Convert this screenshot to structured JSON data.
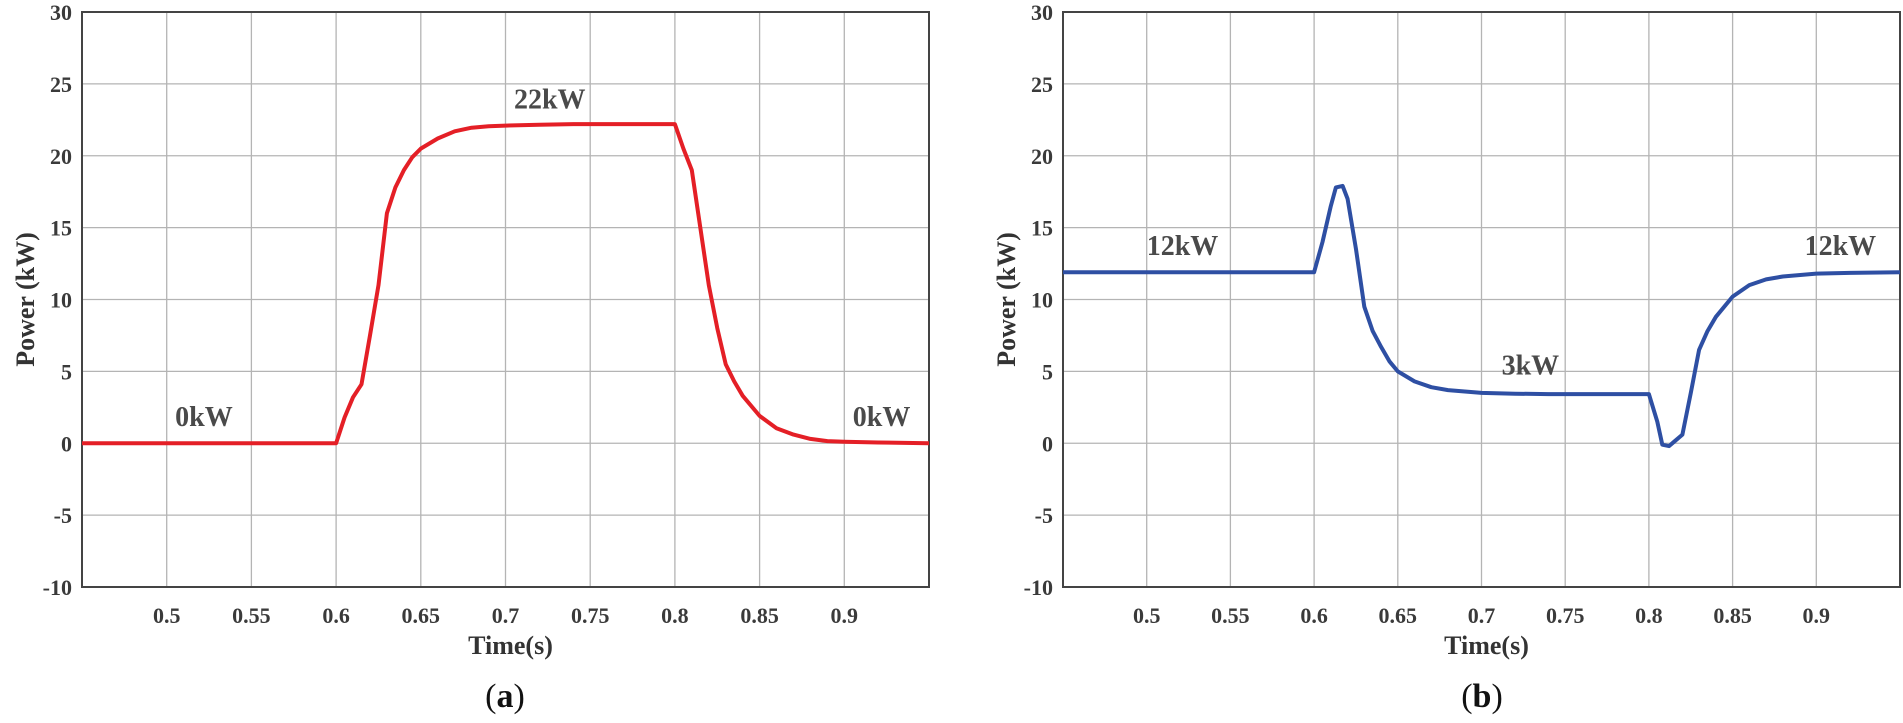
{
  "chart_data": [
    {
      "type": "line",
      "panel_label": "a",
      "xlabel": "Time(s)",
      "ylabel": "Power (kW)",
      "xlim": [
        0.45,
        0.95
      ],
      "ylim": [
        -10,
        30
      ],
      "xticks": [
        0.5,
        0.55,
        0.6,
        0.65,
        0.7,
        0.75,
        0.8,
        0.85,
        0.9
      ],
      "xtick_labels": [
        "0.5",
        "0.55",
        "0.6",
        "0.65",
        "0.7",
        "0.75",
        "0.8",
        "0.85",
        "0.9"
      ],
      "yticks": [
        -10,
        -5,
        0,
        5,
        10,
        15,
        20,
        25,
        30
      ],
      "ytick_labels": [
        "-10",
        "-5",
        "0",
        "5",
        "10",
        "15",
        "20",
        "25",
        "30"
      ],
      "grid": true,
      "series": [
        {
          "color": "#e41f26",
          "x": [
            0.45,
            0.5,
            0.55,
            0.6,
            0.605,
            0.61,
            0.615,
            0.62,
            0.625,
            0.63,
            0.635,
            0.64,
            0.645,
            0.65,
            0.66,
            0.67,
            0.68,
            0.69,
            0.7,
            0.72,
            0.74,
            0.76,
            0.78,
            0.8,
            0.805,
            0.81,
            0.815,
            0.82,
            0.825,
            0.83,
            0.835,
            0.84,
            0.85,
            0.86,
            0.87,
            0.88,
            0.89,
            0.9,
            0.92,
            0.95
          ],
          "y": [
            0,
            0,
            0,
            0,
            1.8,
            3.2,
            4.1,
            7.5,
            11.0,
            16.0,
            17.8,
            19.0,
            19.9,
            20.5,
            21.2,
            21.7,
            21.95,
            22.05,
            22.1,
            22.15,
            22.2,
            22.2,
            22.2,
            22.2,
            20.5,
            19.0,
            15.0,
            11.0,
            8.0,
            5.5,
            4.3,
            3.3,
            1.9,
            1.05,
            0.6,
            0.3,
            0.15,
            0.1,
            0.05,
            0
          ]
        }
      ],
      "annotations": [
        {
          "text": "0kW",
          "x": 0.505,
          "y": 1.2
        },
        {
          "text": "22kW",
          "x": 0.705,
          "y": 23.3
        },
        {
          "text": "0kW",
          "x": 0.905,
          "y": 1.2
        }
      ]
    },
    {
      "type": "line",
      "panel_label": "b",
      "xlabel": "Time(s)",
      "ylabel": "Power (kW)",
      "xlim": [
        0.45,
        0.95
      ],
      "ylim": [
        -10,
        30
      ],
      "xticks": [
        0.5,
        0.55,
        0.6,
        0.65,
        0.7,
        0.75,
        0.8,
        0.85,
        0.9
      ],
      "xtick_labels": [
        "0.5",
        "0.55",
        "0.6",
        "0.65",
        "0.7",
        "0.75",
        "0.8",
        "0.85",
        "0.9"
      ],
      "yticks": [
        -10,
        -5,
        0,
        5,
        10,
        15,
        20,
        25,
        30
      ],
      "ytick_labels": [
        "-10",
        "-5",
        "0",
        "5",
        "10",
        "15",
        "20",
        "25",
        "30"
      ],
      "grid": true,
      "series": [
        {
          "color": "#2e4fa3",
          "x": [
            0.45,
            0.5,
            0.55,
            0.6,
            0.605,
            0.61,
            0.613,
            0.617,
            0.62,
            0.625,
            0.63,
            0.635,
            0.64,
            0.645,
            0.65,
            0.66,
            0.67,
            0.68,
            0.69,
            0.7,
            0.72,
            0.74,
            0.76,
            0.78,
            0.8,
            0.805,
            0.808,
            0.812,
            0.815,
            0.82,
            0.825,
            0.83,
            0.835,
            0.84,
            0.85,
            0.86,
            0.87,
            0.88,
            0.9,
            0.92,
            0.95
          ],
          "y": [
            11.9,
            11.9,
            11.9,
            11.9,
            14.0,
            16.5,
            17.8,
            17.9,
            17.0,
            13.5,
            9.5,
            7.8,
            6.7,
            5.7,
            5.0,
            4.3,
            3.9,
            3.7,
            3.6,
            3.5,
            3.45,
            3.42,
            3.42,
            3.42,
            3.42,
            1.5,
            -0.1,
            -0.2,
            0.1,
            0.6,
            3.5,
            6.5,
            7.8,
            8.8,
            10.2,
            11.0,
            11.4,
            11.6,
            11.8,
            11.85,
            11.9
          ]
        }
      ],
      "annotations": [
        {
          "text": "12kW",
          "x": 0.5,
          "y": 13.1
        },
        {
          "text": "3kW",
          "x": 0.712,
          "y": 4.8
        },
        {
          "text": "12kW",
          "x": 0.893,
          "y": 13.1
        }
      ]
    }
  ]
}
